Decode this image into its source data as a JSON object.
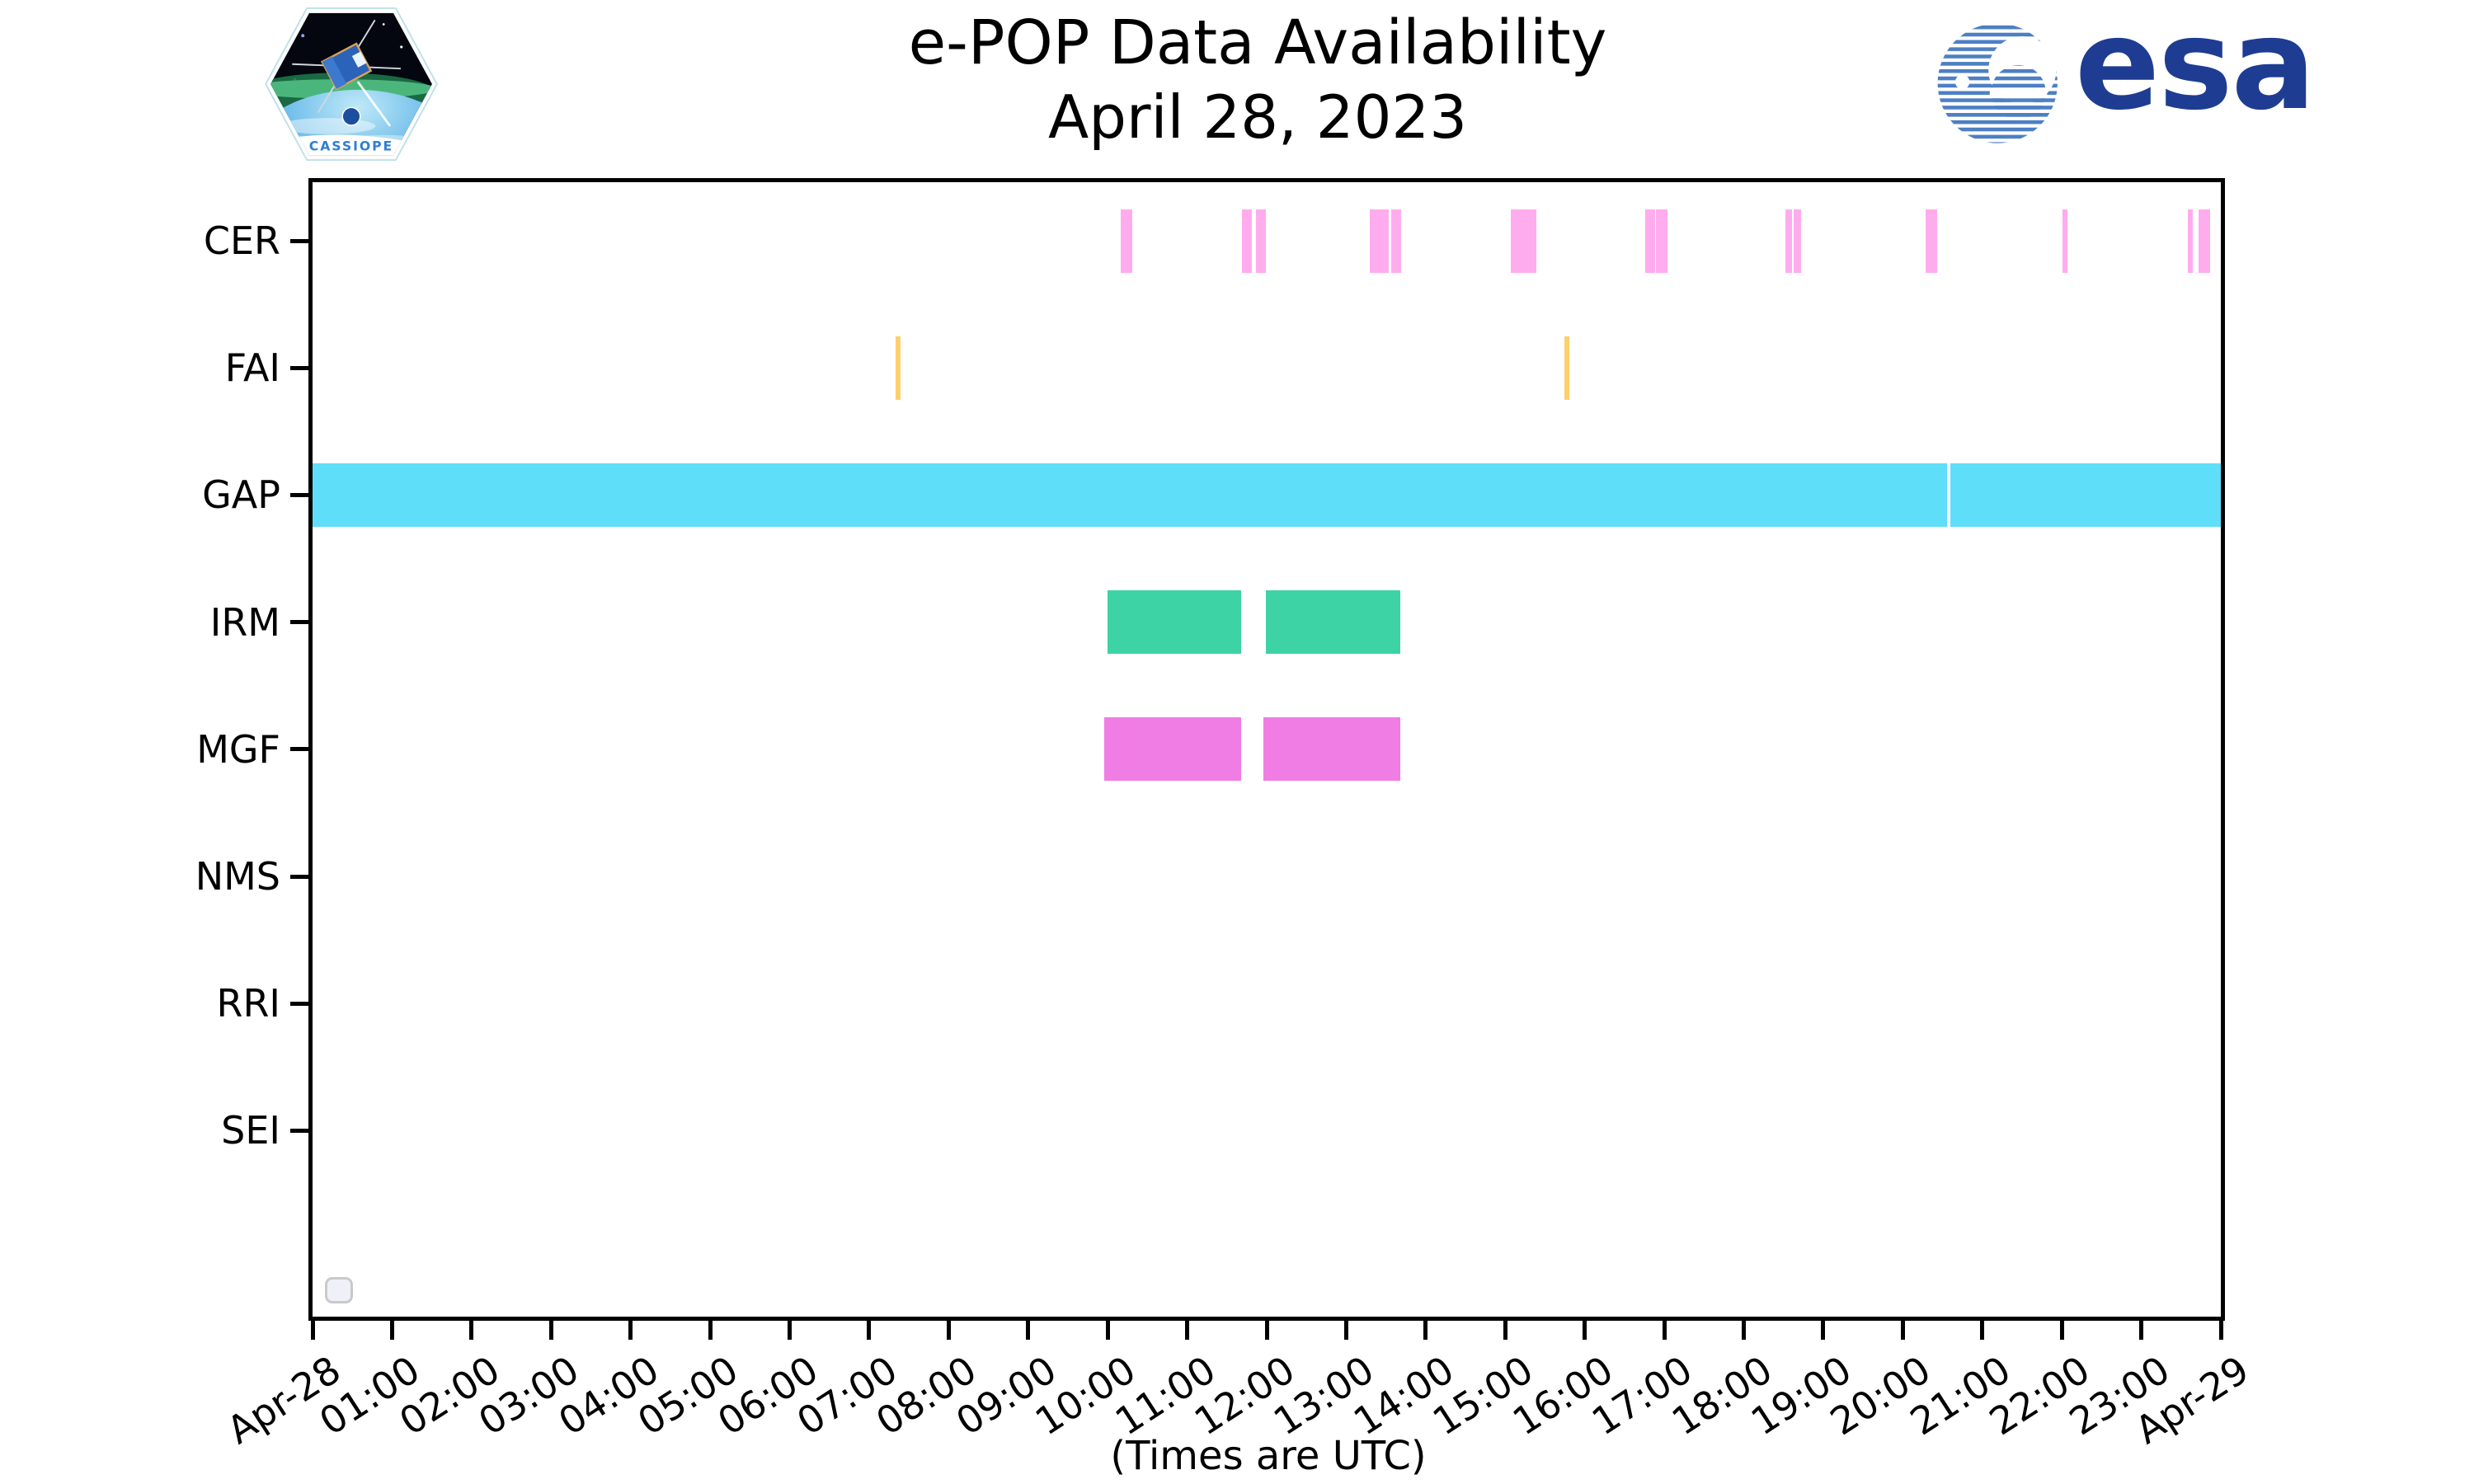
{
  "header": {
    "cassiope_label": "CASSIOPE",
    "esa_wordmark": "esa"
  },
  "chart_data": {
    "type": "bar",
    "variant": "gantt-timeline",
    "title": "e-POP Data Availability",
    "subtitle": "April 28, 2023",
    "xlabel": "(Times are UTC)",
    "grid": false,
    "legend": "empty-box-bottom-left",
    "x_axis": {
      "range_hours": [
        0,
        24
      ],
      "tick_interval_hours": 1,
      "tick_labels": [
        "Apr-28",
        "01:00",
        "02:00",
        "03:00",
        "04:00",
        "05:00",
        "06:00",
        "07:00",
        "08:00",
        "09:00",
        "10:00",
        "11:00",
        "12:00",
        "13:00",
        "14:00",
        "15:00",
        "16:00",
        "17:00",
        "18:00",
        "19:00",
        "20:00",
        "21:00",
        "22:00",
        "23:00",
        "Apr-29"
      ]
    },
    "categories": [
      "CER",
      "FAI",
      "GAP",
      "IRM",
      "MGF",
      "NMS",
      "RRI",
      "SEI"
    ],
    "series": [
      {
        "name": "CER",
        "color": "#ffacef",
        "intervals_hours": [
          [
            10.16,
            10.31
          ],
          [
            11.69,
            11.81
          ],
          [
            11.86,
            11.99
          ],
          [
            13.3,
            13.53
          ],
          [
            13.57,
            13.69
          ],
          [
            15.07,
            15.39
          ],
          [
            16.76,
            16.88
          ],
          [
            16.9,
            17.04
          ],
          [
            18.52,
            18.61
          ],
          [
            18.63,
            18.72
          ],
          [
            20.29,
            20.43
          ],
          [
            22.01,
            22.07
          ],
          [
            23.59,
            23.65
          ],
          [
            23.72,
            23.87
          ]
        ]
      },
      {
        "name": "FAI",
        "color": "#fdd06c",
        "intervals_hours": [
          [
            7.33,
            7.4
          ],
          [
            15.74,
            15.81
          ]
        ]
      },
      {
        "name": "GAP",
        "color": "#5edef9",
        "intervals_hours": [
          [
            0.0,
            20.56
          ],
          [
            20.6,
            24.0
          ]
        ]
      },
      {
        "name": "IRM",
        "color": "#3ed3a5",
        "intervals_hours": [
          [
            10.0,
            11.68
          ],
          [
            11.99,
            13.68
          ]
        ]
      },
      {
        "name": "MGF",
        "color": "#f07de3",
        "intervals_hours": [
          [
            9.96,
            11.68
          ],
          [
            11.96,
            13.68
          ]
        ]
      },
      {
        "name": "NMS",
        "color": "#bbbbbb",
        "intervals_hours": []
      },
      {
        "name": "RRI",
        "color": "#bbbbbb",
        "intervals_hours": []
      },
      {
        "name": "SEI",
        "color": "#bbbbbb",
        "intervals_hours": []
      }
    ]
  }
}
